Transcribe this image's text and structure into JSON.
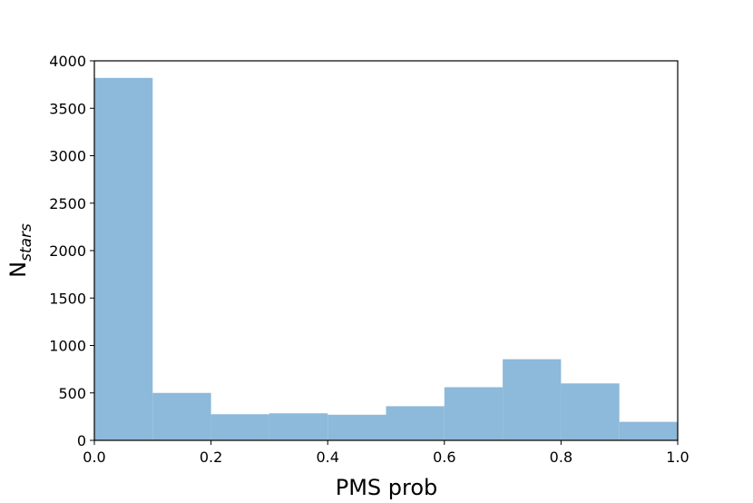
{
  "chart_data": {
    "type": "histogram",
    "xlabel": "PMS prob",
    "ylabel": "N",
    "ylabel_subscript": "stars",
    "bins": [
      0.0,
      0.1,
      0.2,
      0.3,
      0.4,
      0.5,
      0.6,
      0.7,
      0.8,
      0.9,
      1.0
    ],
    "values": [
      3820,
      500,
      275,
      285,
      270,
      360,
      560,
      855,
      600,
      195
    ],
    "color": "#8db9da",
    "xlim": [
      0.0,
      1.0
    ],
    "xticks": [
      {
        "value": 0.0,
        "label": "0.0"
      },
      {
        "value": 0.2,
        "label": "0.2"
      },
      {
        "value": 0.4,
        "label": "0.4"
      },
      {
        "value": 0.6,
        "label": "0.6"
      },
      {
        "value": 0.8,
        "label": "0.8"
      },
      {
        "value": 1.0,
        "label": "1.0"
      }
    ],
    "ylim": [
      0,
      4000
    ],
    "yticks": [
      0,
      500,
      1000,
      1500,
      2000,
      2500,
      3000,
      3500,
      4000
    ]
  }
}
